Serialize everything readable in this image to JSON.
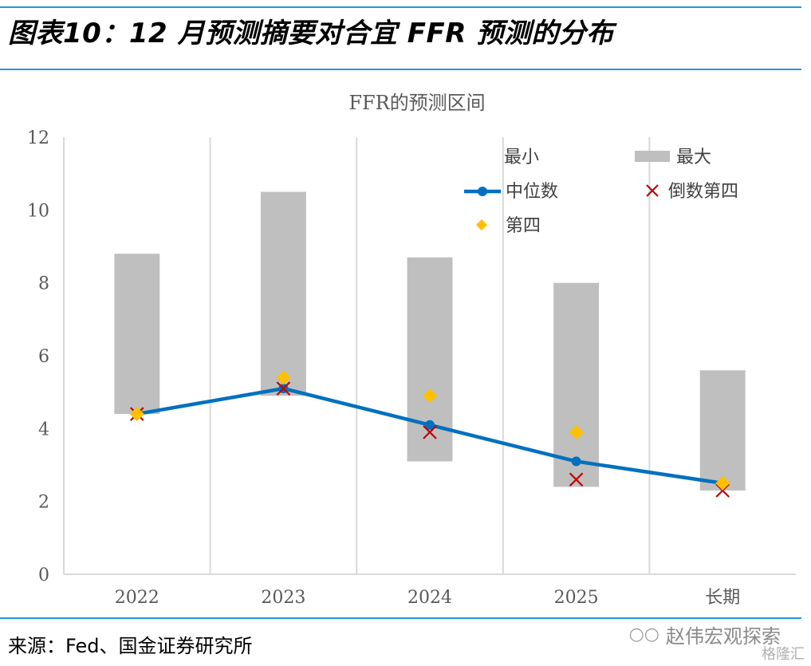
{
  "header": {
    "title": "图表10：12 月预测摘要对合宜 FFR 预测的分布"
  },
  "footer": {
    "source": "来源：Fed、国金证券研究所",
    "watermark": "赵伟宏观探索",
    "watermark_logo": "格隆汇"
  },
  "colors": {
    "accent_rule": "#1f9ad6",
    "range_bar": "#bfbfbf",
    "median_line": "#0070c0",
    "fourth_marker": "#ffc000",
    "fourth_from_end_marker": "#c00000",
    "grid": "#d9d9d9"
  },
  "chart_data": {
    "type": "bar",
    "title": "FFR的预测区间",
    "categories": [
      "2022",
      "2023",
      "2024",
      "2025",
      "长期"
    ],
    "ylim": [
      0,
      12
    ],
    "yticks": [
      0,
      2,
      4,
      6,
      8,
      10,
      12
    ],
    "xlabel": "",
    "ylabel": "",
    "grid": "vertical",
    "legend_position": "top-right",
    "series": [
      {
        "name": "最小",
        "kind": "invisible-base",
        "values": [
          4.4,
          4.9,
          3.1,
          2.4,
          2.3
        ]
      },
      {
        "name": "最大",
        "kind": "range-bar",
        "values": [
          8.8,
          10.5,
          8.7,
          8.0,
          5.6
        ]
      },
      {
        "name": "中位数",
        "kind": "line",
        "values": [
          4.4,
          5.1,
          4.1,
          3.1,
          2.5
        ]
      },
      {
        "name": "倒数第四",
        "kind": "x-marker",
        "values": [
          4.4,
          5.1,
          3.9,
          2.6,
          2.3
        ]
      },
      {
        "name": "第四",
        "kind": "diamond-marker",
        "values": [
          4.4,
          5.4,
          4.9,
          3.9,
          2.5
        ]
      }
    ]
  }
}
